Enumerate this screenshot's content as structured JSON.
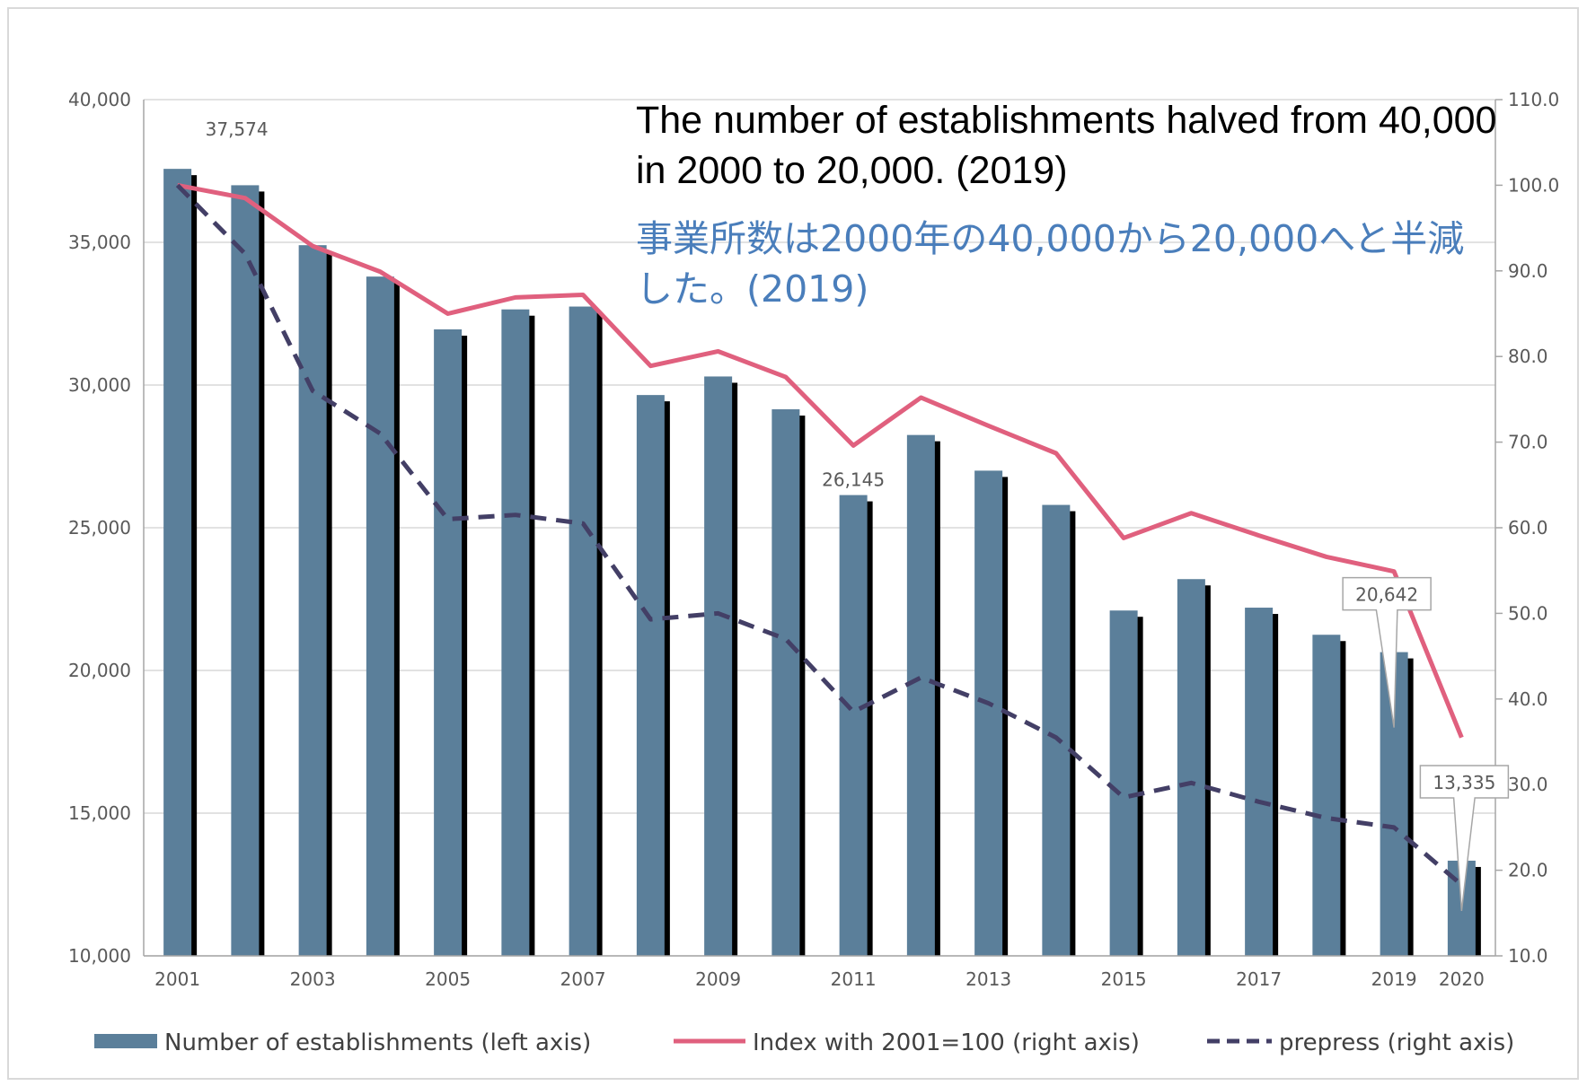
{
  "colors": {
    "bar": "#5b7f9a",
    "bar_shadow": "#000000",
    "index_line": "#e0607e",
    "prepress_line": "#433f66",
    "grid": "#d9d9d9",
    "axis_text": "#595959",
    "note_en": "#000000",
    "note_ja": "#4a7ebb"
  },
  "note": {
    "english": "The number of establishments halved from 40,000 in 2000 to 20,000. (2019)",
    "japanese": "事業所数は2000年の40,000から20,000へと半減した。(2019)"
  },
  "chart_data": {
    "type": "bar",
    "categories": [
      "2001",
      "2002",
      "2003",
      "2004",
      "2005",
      "2006",
      "2007",
      "2008",
      "2009",
      "2010",
      "2011",
      "2012",
      "2013",
      "2014",
      "2015",
      "2016",
      "2017",
      "2018",
      "2019",
      "2020"
    ],
    "x_tick_labels": [
      "2001",
      "",
      "2003",
      "",
      "2005",
      "",
      "2007",
      "",
      "2009",
      "",
      "2011",
      "",
      "2013",
      "",
      "2015",
      "",
      "2017",
      "",
      "2019",
      "2020"
    ],
    "series": [
      {
        "name": "Number of establishments (left axis)",
        "kind": "bar",
        "axis": "left",
        "values": [
          37574,
          37000,
          34900,
          33800,
          31950,
          32650,
          32750,
          29650,
          30300,
          29150,
          26145,
          28250,
          27000,
          25800,
          22100,
          23200,
          22200,
          21250,
          20642,
          13335
        ]
      },
      {
        "name": "Index with 2001=100 (right axis)",
        "kind": "line",
        "axis": "right",
        "values": [
          100.0,
          98.5,
          92.9,
          89.9,
          85.0,
          86.9,
          87.2,
          78.9,
          80.6,
          77.6,
          69.6,
          75.2,
          71.9,
          68.7,
          58.8,
          61.7,
          59.1,
          56.6,
          54.9,
          35.5
        ]
      },
      {
        "name": "prepress (right axis)",
        "kind": "line",
        "dash": true,
        "axis": "right",
        "values": [
          100.0,
          92.0,
          76.0,
          71.0,
          61.0,
          61.5,
          60.5,
          49.3,
          50.0,
          47.0,
          38.5,
          42.5,
          39.5,
          35.5,
          28.5,
          30.2,
          28.0,
          26.1,
          25.0,
          18.3
        ]
      }
    ],
    "y_left": {
      "min": 10000,
      "max": 40000,
      "step": 5000,
      "tick_labels": [
        "10,000",
        "15,000",
        "20,000",
        "25,000",
        "30,000",
        "35,000",
        "40,000"
      ]
    },
    "y_right": {
      "min": 10.0,
      "max": 110.0,
      "step": 10.0,
      "tick_labels": [
        "10.0",
        "20.0",
        "30.0",
        "40.0",
        "50.0",
        "60.0",
        "70.0",
        "80.0",
        "90.0",
        "100.0",
        "110.0"
      ]
    },
    "data_labels": [
      {
        "category": "2001",
        "text": "37,574",
        "callout": false
      },
      {
        "category": "2011",
        "text": "26,145",
        "callout": false
      },
      {
        "category": "2019",
        "text": "20,642",
        "callout": true
      },
      {
        "category": "2020",
        "text": "13,335",
        "callout": true
      }
    ],
    "grid": true,
    "legend_position": "bottom"
  }
}
